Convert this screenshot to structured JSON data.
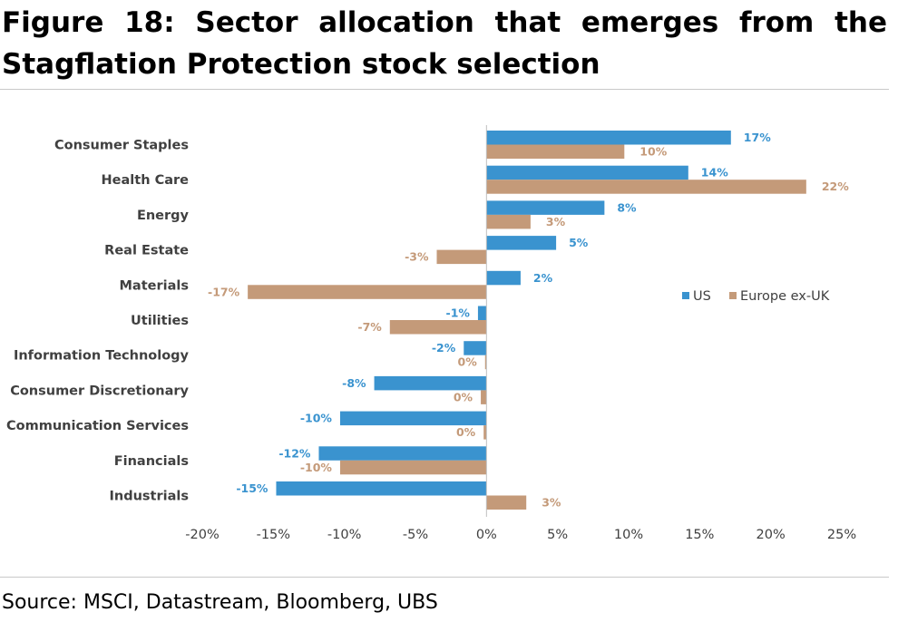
{
  "title": "Figure 18: Sector allocation that emerges from the Stagflation Protection stock selection",
  "source": "Source: MSCI, Datastream, Bloomberg, UBS",
  "chart_data": {
    "type": "bar",
    "orientation": "horizontal",
    "categories": [
      "Consumer Staples",
      "Health Care",
      "Energy",
      "Real Estate",
      "Materials",
      "Utilities",
      "Information Technology",
      "Consumer Discretionary",
      "Communication Services",
      "Financials",
      "Industrials"
    ],
    "series": [
      {
        "name": "US",
        "color": "#3a93cf",
        "values": [
          17.2,
          14.2,
          8.3,
          4.9,
          2.4,
          -0.6,
          -1.6,
          -7.9,
          -10.3,
          -11.8,
          -14.8
        ],
        "labels": [
          "17%",
          "14%",
          "8%",
          "5%",
          "2%",
          "-1%",
          "-2%",
          "-8%",
          "-10%",
          "-12%",
          "-15%"
        ]
      },
      {
        "name": "Europe ex-UK",
        "color": "#c49a79",
        "values": [
          9.7,
          22.5,
          3.1,
          -3.5,
          -16.8,
          -6.8,
          -0.1,
          -0.4,
          -0.2,
          -10.3,
          2.8
        ],
        "labels": [
          "10%",
          "22%",
          "3%",
          "-3%",
          "-17%",
          "-7%",
          "0%",
          "0%",
          "0%",
          "-10%",
          "3%"
        ]
      }
    ],
    "xlim": [
      -20,
      25
    ],
    "xticks": [
      -20,
      -15,
      -10,
      -5,
      0,
      5,
      10,
      15,
      20,
      25
    ],
    "xtick_labels": [
      "-20%",
      "-15%",
      "-10%",
      "-5%",
      "0%",
      "5%",
      "10%",
      "15%",
      "20%",
      "25%"
    ],
    "grid": false,
    "legend": {
      "placement": "right",
      "entries": [
        "US",
        "Europe ex-UK"
      ]
    },
    "xlabel": "",
    "ylabel": ""
  }
}
